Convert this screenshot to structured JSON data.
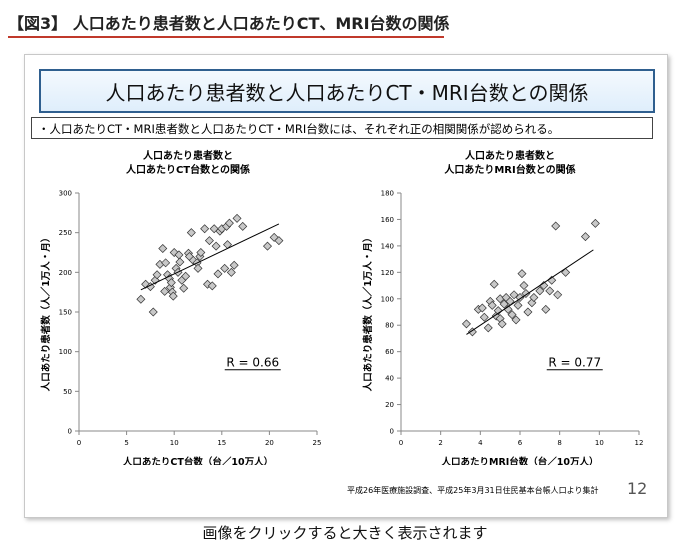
{
  "figure_title": "【図3】 人口あたり患者数と人口あたりCT、MRI台数の関係",
  "slide": {
    "banner_title": "人口あたり患者数と人口あたりCT・MRI台数との関係",
    "subhead": "・人口あたりCT・MRI患者数と人口あたりCT・MRI台数には、それぞれ正の相関関係が認められる。",
    "footnote": "平成26年医療施設調査、平成25年3月31日住民基本台帳人口より集計",
    "page_number": "12"
  },
  "caption": "画像をクリックすると大きく表示されます",
  "chart_data": [
    {
      "type": "scatter",
      "title_lines": [
        "人口あたり患者数と",
        "人口あたりCT台数との関係"
      ],
      "xlabel": "人口あたりCT台数（台／10万人）",
      "ylabel": "人口あたり患者数（人／1万人・月）",
      "xlim": [
        0,
        25
      ],
      "ylim": [
        0,
        300
      ],
      "xticks": [
        0,
        5,
        10,
        15,
        20,
        25
      ],
      "yticks": [
        0,
        50,
        100,
        150,
        200,
        250,
        300
      ],
      "annotation": "R = 0.66",
      "marker_color": "#c8c8c8",
      "trendline": [
        [
          6.5,
          178
        ],
        [
          21,
          261
        ]
      ],
      "points": [
        [
          6.5,
          166
        ],
        [
          7.0,
          185
        ],
        [
          7.5,
          182
        ],
        [
          7.8,
          150
        ],
        [
          8.0,
          190
        ],
        [
          8.2,
          197
        ],
        [
          8.5,
          210
        ],
        [
          8.8,
          230
        ],
        [
          9.0,
          176
        ],
        [
          9.1,
          212
        ],
        [
          9.3,
          197
        ],
        [
          9.5,
          192
        ],
        [
          9.6,
          181
        ],
        [
          9.7,
          187
        ],
        [
          9.8,
          175
        ],
        [
          9.9,
          170
        ],
        [
          10.0,
          225
        ],
        [
          10.2,
          205
        ],
        [
          10.4,
          200
        ],
        [
          10.5,
          222
        ],
        [
          10.6,
          213
        ],
        [
          10.8,
          190
        ],
        [
          11.0,
          180
        ],
        [
          11.2,
          195
        ],
        [
          11.5,
          224
        ],
        [
          11.6,
          220
        ],
        [
          11.8,
          250
        ],
        [
          12.0,
          215
        ],
        [
          12.4,
          212
        ],
        [
          12.5,
          205
        ],
        [
          12.7,
          220
        ],
        [
          12.8,
          225
        ],
        [
          13.2,
          255
        ],
        [
          13.5,
          185
        ],
        [
          13.7,
          240
        ],
        [
          14.0,
          183
        ],
        [
          14.2,
          255
        ],
        [
          14.4,
          233
        ],
        [
          14.6,
          198
        ],
        [
          14.8,
          252
        ],
        [
          15.0,
          255
        ],
        [
          15.3,
          205
        ],
        [
          15.5,
          258
        ],
        [
          15.6,
          235
        ],
        [
          15.8,
          262
        ],
        [
          16.0,
          200
        ],
        [
          16.3,
          209
        ],
        [
          16.6,
          268
        ],
        [
          17.2,
          258
        ],
        [
          19.8,
          233
        ],
        [
          20.5,
          244
        ],
        [
          21.0,
          240
        ]
      ]
    },
    {
      "type": "scatter",
      "title_lines": [
        "人口あたり患者数と",
        "人口あたりMRI台数との関係"
      ],
      "xlabel": "人口あたりMRI台数（台／10万人）",
      "ylabel": "人口あたり患者数（人／1万人・月）",
      "xlim": [
        0,
        12
      ],
      "ylim": [
        0,
        180
      ],
      "xticks": [
        0,
        2,
        4,
        6,
        8,
        10,
        12
      ],
      "yticks": [
        0,
        20,
        40,
        60,
        80,
        100,
        120,
        140,
        160,
        180
      ],
      "annotation": "R = 0.77",
      "marker_color": "#c8c8c8",
      "trendline": [
        [
          3.3,
          73
        ],
        [
          9.7,
          137
        ]
      ],
      "points": [
        [
          3.3,
          81
        ],
        [
          3.6,
          75
        ],
        [
          3.9,
          92
        ],
        [
          4.1,
          93
        ],
        [
          4.2,
          86
        ],
        [
          4.4,
          78
        ],
        [
          4.5,
          98
        ],
        [
          4.6,
          95
        ],
        [
          4.7,
          111
        ],
        [
          4.8,
          87
        ],
        [
          4.9,
          91
        ],
        [
          5.0,
          100
        ],
        [
          5.0,
          85
        ],
        [
          5.1,
          81
        ],
        [
          5.2,
          96
        ],
        [
          5.3,
          101
        ],
        [
          5.4,
          92
        ],
        [
          5.5,
          98
        ],
        [
          5.6,
          88
        ],
        [
          5.7,
          103
        ],
        [
          5.8,
          84
        ],
        [
          5.9,
          95
        ],
        [
          6.0,
          101
        ],
        [
          6.1,
          119
        ],
        [
          6.2,
          110
        ],
        [
          6.3,
          104
        ],
        [
          6.4,
          90
        ],
        [
          6.6,
          97
        ],
        [
          6.7,
          101
        ],
        [
          7.0,
          106
        ],
        [
          7.2,
          110
        ],
        [
          7.3,
          92
        ],
        [
          7.5,
          106
        ],
        [
          7.6,
          114
        ],
        [
          7.8,
          155
        ],
        [
          7.9,
          103
        ],
        [
          8.3,
          120
        ],
        [
          9.3,
          147
        ],
        [
          9.8,
          157
        ]
      ]
    }
  ]
}
